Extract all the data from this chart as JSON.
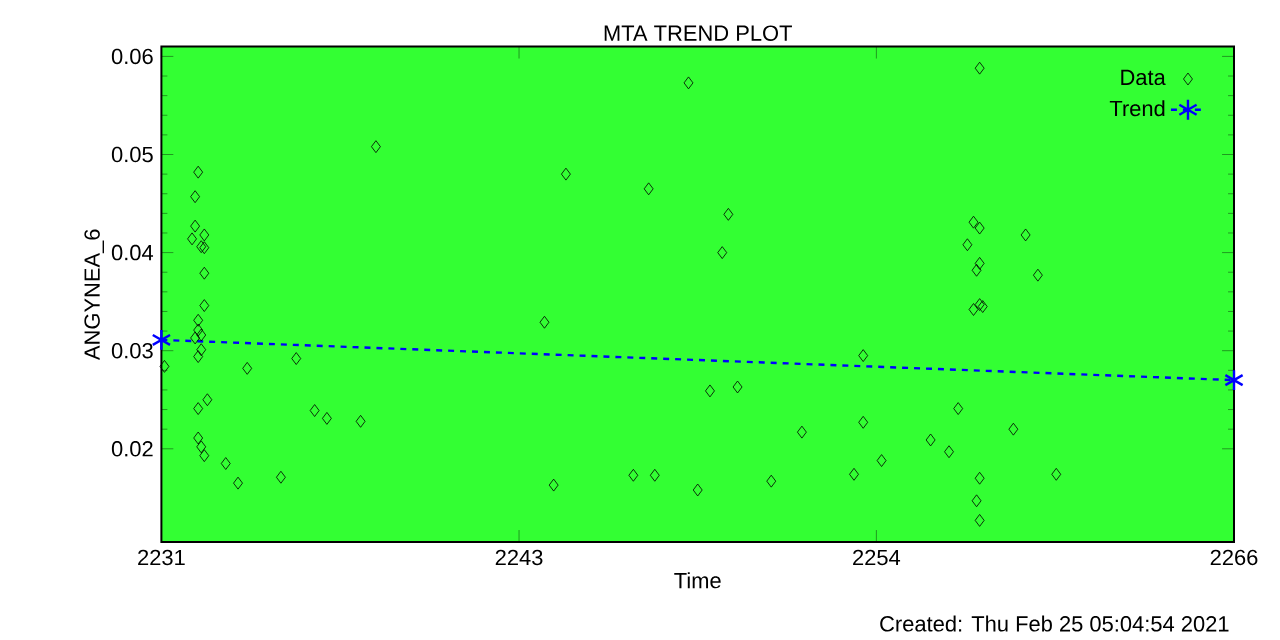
{
  "chart_data": {
    "type": "scatter",
    "title": "MTA TREND PLOT",
    "xlabel": "Time",
    "ylabel": "ANGYNEA_6",
    "annotations": [
      "Created: Thu Feb 25 05:04:54 2021"
    ],
    "xlim": [
      2231,
      2266
    ],
    "ylim": [
      0.0105,
      0.061
    ],
    "xticks": [
      {
        "value": 2231,
        "label": "2231"
      },
      {
        "value": 2242.67,
        "label": "2243"
      },
      {
        "value": 2254.33,
        "label": "2254"
      },
      {
        "value": 2266,
        "label": "2266"
      }
    ],
    "yticks": [
      0.02,
      0.03,
      0.04,
      0.05,
      0.06
    ],
    "legend": "top right",
    "series": [
      {
        "name": "Data",
        "marker": "diamond",
        "color": "#000000",
        "x": [
          2231.1,
          2232.2,
          2232.1,
          2232.1,
          2232.0,
          2232.4,
          2232.4,
          2232.3,
          2232.4,
          2232.4,
          2232.2,
          2232.2,
          2232.3,
          2232.1,
          2232.3,
          2232.2,
          2232.2,
          2232.5,
          2232.2,
          2232.3,
          2232.4,
          2233.1,
          2233.5,
          2233.8,
          2234.9,
          2235.4,
          2236.0,
          2236.4,
          2237.5,
          2238.0,
          2243.5,
          2244.2,
          2243.8,
          2246.4,
          2247.1,
          2246.9,
          2248.2,
          2249.5,
          2249.3,
          2248.9,
          2249.8,
          2248.5,
          2250.9,
          2251.9,
          2253.9,
          2253.9,
          2253.6,
          2254.5,
          2256.1,
          2256.7,
          2257.0,
          2257.7,
          2257.5,
          2257.7,
          2257.3,
          2257.7,
          2257.6,
          2257.7,
          2257.5,
          2257.8,
          2257.7,
          2257.6,
          2257.7,
          2258.8,
          2259.2,
          2259.6,
          2260.2
        ],
        "values": [
          0.0284,
          0.0482,
          0.0457,
          0.0427,
          0.0414,
          0.0418,
          0.0405,
          0.0406,
          0.0379,
          0.0346,
          0.0331,
          0.0321,
          0.0316,
          0.0313,
          0.0301,
          0.0294,
          0.0241,
          0.025,
          0.0211,
          0.0202,
          0.0193,
          0.0185,
          0.0165,
          0.0282,
          0.0171,
          0.0292,
          0.0239,
          0.0231,
          0.0228,
          0.0508,
          0.0329,
          0.048,
          0.0163,
          0.0173,
          0.0173,
          0.0465,
          0.0573,
          0.0439,
          0.04,
          0.0259,
          0.0263,
          0.0158,
          0.0167,
          0.0217,
          0.0295,
          0.0227,
          0.0174,
          0.0188,
          0.0209,
          0.0197,
          0.0241,
          0.0588,
          0.0431,
          0.0425,
          0.0408,
          0.0389,
          0.0382,
          0.0347,
          0.0342,
          0.0345,
          0.017,
          0.0147,
          0.0127,
          0.022,
          0.0418,
          0.0377,
          0.0174
        ]
      },
      {
        "name": "Trend",
        "type": "line",
        "marker": "cross",
        "line_style": "dashed",
        "color": "#0000ff",
        "x": [
          2231,
          2266
        ],
        "values": [
          0.0311,
          0.027
        ]
      }
    ]
  }
}
